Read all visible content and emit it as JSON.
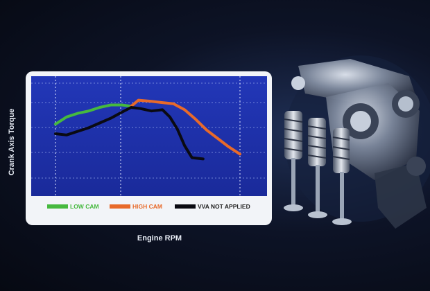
{
  "chart_data": {
    "type": "line",
    "title": "",
    "xlabel": "Engine RPM",
    "ylabel": "Crank Axis Torque",
    "xlim": [
      0,
      100
    ],
    "ylim": [
      0,
      100
    ],
    "grid": true,
    "legend_position": "bottom",
    "series": [
      {
        "name": "LOW CAM",
        "color": "#46b93f",
        "x": [
          0,
          6,
          12,
          18,
          24,
          30,
          36,
          41
        ],
        "y": [
          60,
          66,
          69,
          71,
          74,
          76,
          76,
          75
        ]
      },
      {
        "name": "HIGH CAM",
        "color": "#e86a2a",
        "x": [
          41,
          45,
          52,
          58,
          64,
          70,
          76,
          82,
          88,
          94,
          100
        ],
        "y": [
          75,
          80,
          79,
          78,
          77,
          72,
          64,
          55,
          48,
          41,
          35
        ]
      },
      {
        "name": "VVA NOT APPLIED",
        "color": "#0a0a12",
        "x": [
          0,
          6,
          12,
          18,
          24,
          30,
          36,
          41,
          46,
          52,
          58,
          62,
          66,
          70,
          74,
          80
        ],
        "y": [
          52,
          51,
          54,
          57,
          61,
          65,
          70,
          74,
          73,
          71,
          72,
          66,
          56,
          42,
          32,
          31
        ]
      }
    ]
  },
  "engine_graphic": {
    "icon": "valve-rocker-arm-assembly"
  }
}
